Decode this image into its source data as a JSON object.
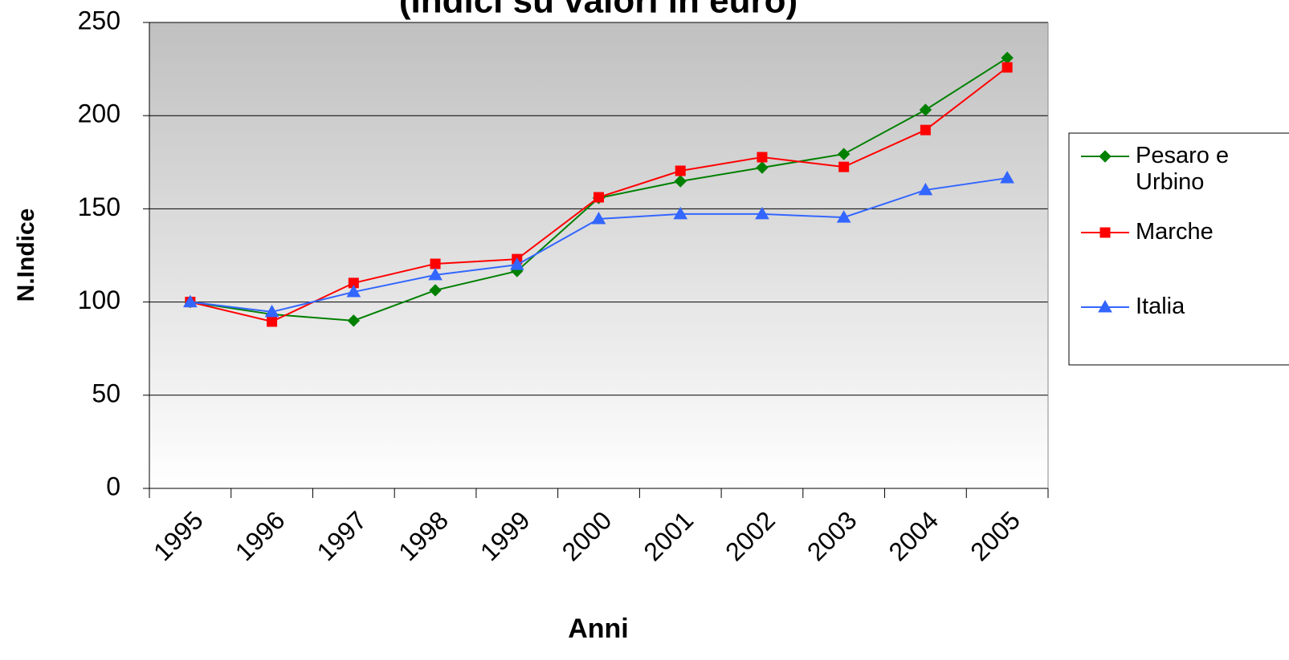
{
  "chart_data": {
    "type": "line",
    "title": "(Indici su valori in euro)",
    "x_label": "Anni",
    "y_label": "N.Indice",
    "categories": [
      "1995",
      "1996",
      "1997",
      "1998",
      "1999",
      "2000",
      "2001",
      "2002",
      "2003",
      "2004",
      "2005"
    ],
    "series": [
      {
        "name": "Pesaro e Urbino",
        "color": "#008000",
        "marker": "diamond",
        "values": [
          100,
          93.4,
          90,
          106.3,
          116.6,
          155.8,
          164.8,
          172.1,
          179.4,
          203.1,
          231
        ]
      },
      {
        "name": "Marche",
        "color": "#ff0000",
        "marker": "square",
        "values": [
          100,
          89.5,
          110.2,
          120.5,
          123,
          156.2,
          170.4,
          177.7,
          172.5,
          192.3,
          225.9
        ]
      },
      {
        "name": "Italia",
        "color": "#3366ff",
        "marker": "triangle",
        "values": [
          100,
          94.7,
          105.4,
          114.5,
          120,
          144.6,
          147.2,
          147.2,
          145.4,
          160.1,
          166.5
        ]
      }
    ],
    "ylim": [
      0,
      250
    ],
    "yticks": [
      0,
      50,
      100,
      150,
      200,
      250
    ],
    "grid": true,
    "legend": "right"
  }
}
